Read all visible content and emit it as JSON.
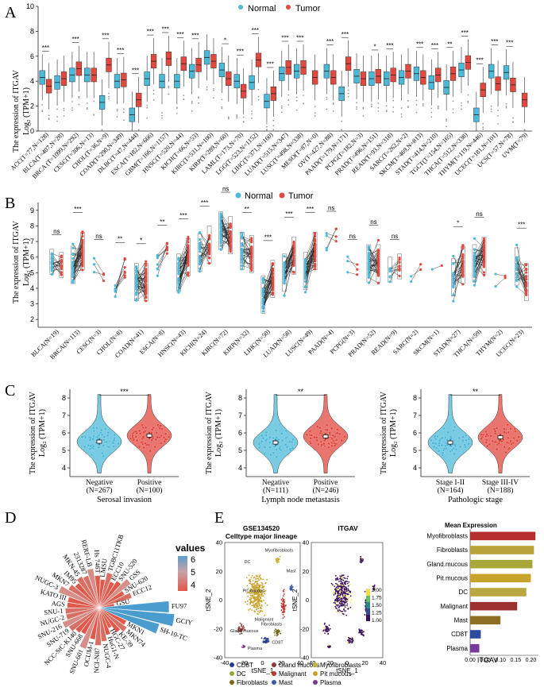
{
  "colors": {
    "normal": "#4bb9d9",
    "tumor": "#e2483e",
    "text": "#111111"
  },
  "panel_labels": [
    "A",
    "B",
    "C",
    "D",
    "E"
  ],
  "chart_data": [
    {
      "panel": "A",
      "type": "box",
      "ylabel1": "The expression of ITGAV",
      "ylabel2": "Log₂ (TPM+1)",
      "ylim": [
        0,
        10
      ],
      "yticks": [
        0,
        2,
        4,
        6,
        8,
        10
      ],
      "legend": [
        "Normal",
        "Tumor"
      ],
      "categories": [
        "ACC(T=77,N=128)",
        "BLCA(T=407,N=28)",
        "BRCA (T=1099,N=292)",
        "CESC(T=306,N=13)",
        "CHOL(T=36,N=9)",
        "COAD(T=290,N=349)",
        "DLBC(T=47,N=444)",
        "ESCA(T=182,N=666)",
        "GBM(T=166,N=1157)",
        "HNSC(T=520,N=44)",
        "KICH(T=66,N=53)",
        "KIRC(T=531,N=100)",
        "KIRP(T=289,N=60)",
        "LAML(T=173,N=70)",
        "LGG(T=523,N=1152)",
        "LIHC(T=371,N=160)",
        "LUAD(T=515,N=347)",
        "LUSC(T=498,N=338)",
        "MESO(T=87,N=0)",
        "OV(T=427,N=88)",
        "PAAD(T=179,N=171)",
        "PCPG(T=182,N=3)",
        "PRAD(T=496,N=151)",
        "READ(T=93,N=318)",
        "SARC(T=262,N=2)",
        "SKCM(T=469,N=813)",
        "STAD(T=414,N=210)",
        "TGCT(T=154,N=165)",
        "THCA(T=512,N=338)",
        "THYM(T=119,N=446)",
        "UCEC(T=181,N=101)",
        "UCS(T=57,N=78)",
        "UVM(T=79)"
      ],
      "normal_median": [
        4.3,
        3.9,
        4.5,
        4.5,
        2.3,
        4.0,
        1.3,
        4.2,
        4.0,
        4.0,
        4.8,
        5.9,
        4.9,
        4.0,
        3.9,
        2.4,
        4.6,
        4.8,
        null,
        4.8,
        3.0,
        4.4,
        4.2,
        4.2,
        4.3,
        4.6,
        3.9,
        3.5,
        4.9,
        1.3,
        4.8,
        4.7,
        null
      ],
      "tumor_median": [
        3.6,
        4.2,
        5.0,
        4.5,
        5.3,
        4.1,
        2.5,
        5.6,
        5.8,
        5.4,
        5.3,
        5.6,
        4.2,
        3.2,
        5.7,
        3.0,
        5.1,
        5.1,
        4.3,
        4.3,
        5.4,
        4.2,
        4.4,
        4.5,
        4.8,
        4.3,
        4.5,
        4.6,
        5.5,
        3.3,
        3.8,
        3.7,
        2.5
      ],
      "significance": [
        "***",
        "",
        "***",
        "",
        "***",
        "***",
        "***",
        "***",
        "***",
        "***",
        "***",
        "",
        "*",
        "***",
        "***",
        "***",
        "***",
        "***",
        "",
        "***",
        "***",
        "",
        "*",
        "***",
        "",
        "***",
        "***",
        "**",
        "***",
        "***",
        "***",
        "***",
        ""
      ]
    },
    {
      "panel": "B",
      "type": "paired-dot",
      "ylabel1": "The expression of ITGAV",
      "ylabel2": "Log₂ (TPM+1)",
      "ylim": [
        1.5,
        9.5
      ],
      "yticks": [
        2,
        3,
        4,
        5,
        6,
        7,
        8,
        9
      ],
      "legend": [
        "Normal",
        "Tumor"
      ],
      "categories": [
        "BLCA(N=19)",
        "BRCA(N=113)",
        "CESC(N=3)",
        "CHOL(N=8)",
        "COAD(N=41)",
        "ESCA(N=8)",
        "HNSC(N=43)",
        "KICH(N=24)",
        "KIRC(N=72)",
        "KIRP(N=32)",
        "LIHC(N=50)",
        "LUAD(N=58)",
        "LUSC(N=49)",
        "PAAD(N=4)",
        "PCPG(N=3)",
        "PRAD(N=52)",
        "READ(N=9)",
        "SARC(N=2)",
        "SKCM(N=1)",
        "STAD(N=27)",
        "THCA(N=59)",
        "THYM(N=2)",
        "UCEC(N=23)"
      ],
      "normal_level": [
        5.7,
        5.5,
        5.4,
        3.8,
        4.4,
        5.7,
        5.0,
        6.3,
        7.7,
        6.4,
        3.6,
        5.0,
        5.1,
        7.0,
        5.4,
        5.6,
        5.2,
        4.6,
        5.5,
        4.7,
        5.6,
        4.6,
        5.4
      ],
      "tumor_level": [
        5.5,
        6.4,
        5.1,
        5.2,
        4.4,
        6.3,
        6.0,
        6.8,
        7.4,
        6.2,
        4.6,
        6.1,
        6.4,
        7.2,
        5.2,
        5.6,
        5.4,
        5.7,
        5.8,
        5.5,
        6.1,
        5.0,
        4.4
      ],
      "significance": [
        "ns",
        "***",
        "ns",
        "**",
        "*",
        "**",
        "***",
        "***",
        "ns",
        "**",
        "***",
        "***",
        "***",
        "ns",
        "ns",
        "ns",
        "ns",
        "",
        "",
        "*",
        "ns",
        "",
        "***"
      ]
    },
    {
      "panel": "C",
      "type": "violin",
      "ylabel1": "The expression of ITGAV",
      "ylabel2": "Log₂ (TPM+1)",
      "ylim": [
        3.5,
        8.5
      ],
      "yticks": [
        4,
        5,
        6,
        7,
        8
      ],
      "subplots": [
        {
          "xlabel": "Serosal invasion",
          "groups": [
            "Negative",
            "Positive"
          ],
          "counts": [
            "(N=267)",
            "(N=100)"
          ],
          "means": [
            5.5,
            5.85
          ],
          "significance": "***"
        },
        {
          "xlabel": "Lymph node metastasis",
          "groups": [
            "Negative",
            "Positive"
          ],
          "counts": [
            "(N=111)",
            "(N=246)"
          ],
          "means": [
            5.45,
            5.8
          ],
          "significance": "**"
        },
        {
          "xlabel": "Pathologic stage",
          "groups": [
            "Stage I-II",
            "Stage III-IV"
          ],
          "counts": [
            "(N=164)",
            "(N=188)"
          ],
          "means": [
            5.45,
            5.75
          ],
          "significance": "**"
        }
      ]
    },
    {
      "panel": "D",
      "type": "radial-bar",
      "legend_title": "values",
      "legend_ticks": [
        "6",
        "5",
        "4"
      ],
      "categories": [
        "TGBC11TKB",
        "ECC10",
        "SNU-520",
        "GSS",
        "SNU-620",
        "ECC12",
        "GSU",
        "FU97",
        "GCIY",
        "SH-10-TC",
        "MKN1",
        "MKN74",
        "KE-39",
        "HGC-27",
        "HuG1-N",
        "NUGC-4",
        "NCI-N87",
        "OCUM-1",
        "SNU-601",
        "SNU-668",
        "NCC-StC-K140",
        "SNU-719",
        "SNU-216",
        "NUGC-2",
        "SNU-1",
        "AGS",
        "KATO III",
        "NUGC-3",
        "MKN7",
        "IM95",
        "MKN-45",
        "2313287",
        "RERF-LB",
        "Hs 746T",
        "LMSU"
      ],
      "values": [
        4.4,
        4.0,
        4.2,
        4.6,
        4.0,
        4.3,
        3.3,
        6.2,
        6.5,
        5.8,
        4.1,
        4.3,
        4.1,
        3.7,
        4.0,
        4.3,
        4.5,
        4.2,
        4.8,
        4.1,
        4.2,
        4.4,
        4.6,
        4.3,
        4.3,
        4.2,
        4.2,
        4.8,
        4.4,
        4.2,
        4.4,
        4.3,
        4.6,
        4.2,
        4.0
      ]
    },
    {
      "panel": "E",
      "type": "tsne-and-bar",
      "tsne1_title1": "GSE134520",
      "tsne1_title2": "Celltype major lineage",
      "tsne2_title": "ITGAV",
      "xlabel": "tSNE_1",
      "ylabel": "tSNE_2",
      "xticks": [
        -40,
        -20,
        0,
        20,
        40
      ],
      "yticks": [
        -40,
        -20,
        0,
        20,
        40
      ],
      "colorbar_ticks": [
        "2.00",
        "1.75",
        "1.50",
        "1.25",
        "1.00"
      ],
      "cluster_labels": [
        "Myofibroblasts",
        "Pit mucous",
        "Malignant",
        "DC",
        "Gland mucous",
        "Fibroblasts",
        "Mast",
        "CD8T",
        "Plasma"
      ],
      "cell_types": [
        "CD8T",
        "DC",
        "Fibroblasts",
        "Gland mucous",
        "Malignant",
        "Mast",
        "Myofibroblasts",
        "Pit mucous",
        "Plasma"
      ],
      "cell_type_colors": [
        "#2b3a8c",
        "#9aa63a",
        "#7a6a1e",
        "#8c3a3a",
        "#c2332e",
        "#3a5aa8",
        "#c9b23a",
        "#c8a22a",
        "#7a3a8c"
      ],
      "bar_title": "Mean Expression",
      "bar_xlabel": "ITGAV",
      "bar_xticks": [
        "0.00",
        "0.05",
        "0.10",
        "0.15",
        "0.20"
      ],
      "bar_categories": [
        "Myofibroblasts",
        "Fibroblasts",
        "Gland.mucous",
        "Pit.mucous",
        "DC",
        "Malignant",
        "Mast",
        "CD8T",
        "Plasma"
      ],
      "bar_values": [
        0.215,
        0.21,
        0.205,
        0.2,
        0.185,
        0.155,
        0.1,
        0.035,
        0.03
      ],
      "bar_colors": [
        "#b5302c",
        "#b8a23a",
        "#a8a83a",
        "#c6a42a",
        "#b9a640",
        "#9a3030",
        "#8a7020",
        "#2e4aa0",
        "#7a3a9a"
      ]
    }
  ]
}
